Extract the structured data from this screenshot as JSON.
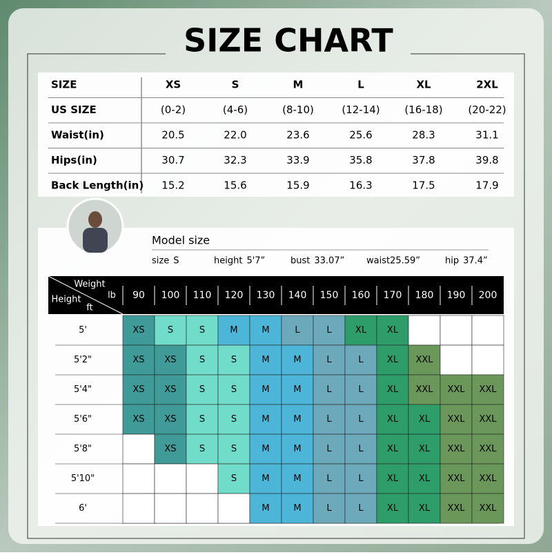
{
  "header": {
    "title": "SIZE CHART"
  },
  "size_table": {
    "columns": [
      "SIZE",
      "XS",
      "S",
      "M",
      "L",
      "XL",
      "2XL"
    ],
    "rows": [
      [
        "US SIZE",
        "(0-2)",
        "(4-6)",
        "(8-10)",
        "(12-14)",
        "(16-18)",
        "(20-22)"
      ],
      [
        "Waist(in)",
        "20.5",
        "22.0",
        "23.6",
        "25.6",
        "28.3",
        "31.1"
      ],
      [
        "Hips(in)",
        "30.7",
        "32.3",
        "33.9",
        "35.8",
        "37.8",
        "39.8"
      ],
      [
        "Back Length(in)",
        "15.2",
        "15.6",
        "15.9",
        "16.3",
        "17.5",
        "17.9"
      ]
    ]
  },
  "model": {
    "title": "Model size",
    "details": [
      {
        "label": "size",
        "value": "S"
      },
      {
        "label": "height",
        "value": "5'7”"
      },
      {
        "label": "bust",
        "value": "33.07”"
      },
      {
        "label": "waist",
        "value": "25.59”"
      },
      {
        "label": "hip",
        "value": "37.4”"
      }
    ]
  },
  "fit_grid": {
    "weight_label": "Weight",
    "weight_unit": "lb",
    "height_label": "Height",
    "height_unit": "ft",
    "weights": [
      "90",
      "100",
      "110",
      "120",
      "130",
      "140",
      "150",
      "160",
      "170",
      "180",
      "190",
      "200"
    ],
    "heights": [
      "5'",
      "5'2\"",
      "5'4\"",
      "5'6\"",
      "5'8\"",
      "5'10\"",
      "6'"
    ],
    "cells": [
      [
        "XS",
        "S",
        "S",
        "M",
        "M",
        "L",
        "L",
        "XL",
        "XL",
        null,
        null,
        null
      ],
      [
        "XS",
        "XS",
        "S",
        "S",
        "M",
        "M",
        "L",
        "L",
        "XL",
        "XXL",
        null,
        null
      ],
      [
        "XS",
        "XS",
        "S",
        "S",
        "M",
        "M",
        "L",
        "L",
        "XL",
        "XXL",
        "XXL",
        "XXL"
      ],
      [
        "XS",
        "XS",
        "S",
        "S",
        "M",
        "M",
        "L",
        "L",
        "XL",
        "XL",
        "XXL",
        "XXL"
      ],
      [
        null,
        "XS",
        "S",
        "S",
        "M",
        "M",
        "L",
        "L",
        "XL",
        "XL",
        "XXL",
        "XXL"
      ],
      [
        null,
        null,
        null,
        "S",
        "M",
        "M",
        "L",
        "L",
        "XL",
        "XL",
        "XXL",
        "XXL"
      ],
      [
        null,
        null,
        null,
        null,
        "M",
        "M",
        "L",
        "L",
        "XL",
        "XL",
        "XXL",
        "XXL"
      ]
    ]
  }
}
